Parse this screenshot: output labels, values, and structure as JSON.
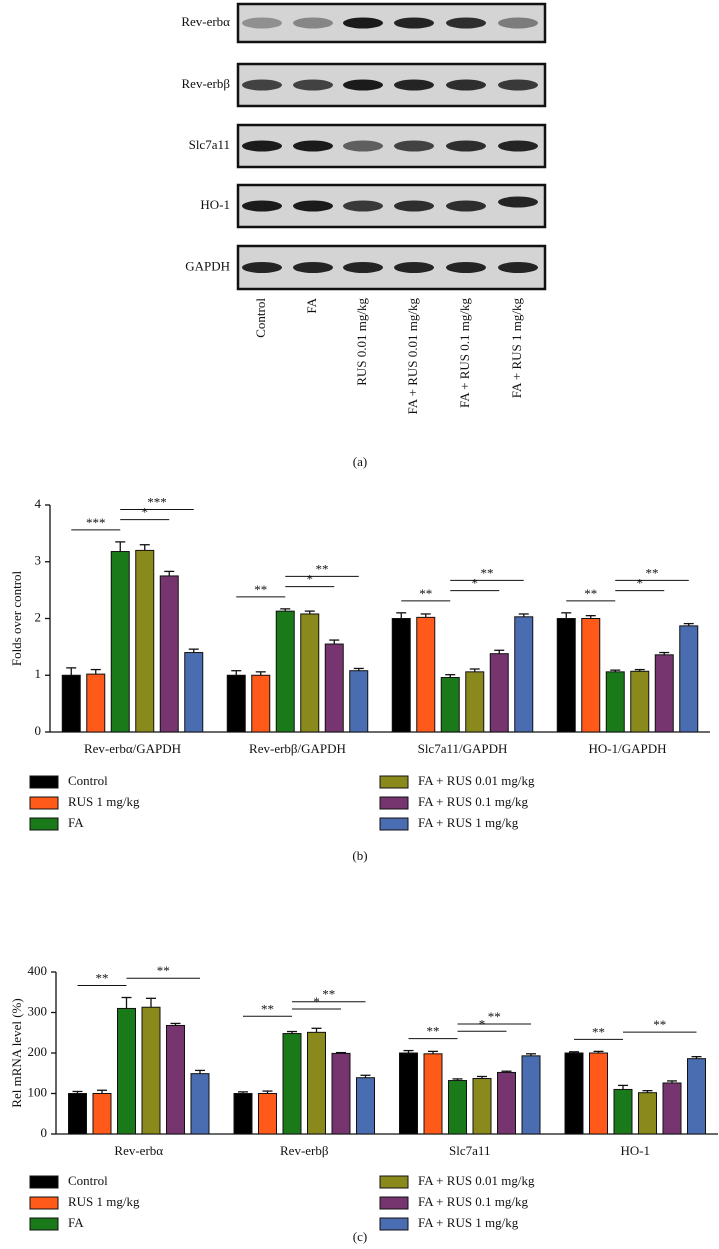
{
  "figure": {
    "panel_a": {
      "rows": [
        "Rev-erbα",
        "Rev-erbβ",
        "Slc7a11",
        "HO-1",
        "GAPDH"
      ],
      "columns": [
        "Control",
        "FA",
        "RUS 0.01 mg/kg",
        "FA + RUS 0.01 mg/kg",
        "FA + RUS 0.1 mg/kg",
        "FA + RUS 1 mg/kg"
      ],
      "caption": "(a)"
    }
  },
  "chart_data": [
    {
      "type": "bar",
      "caption": "(b)",
      "y_label": "Folds over control",
      "categories": [
        "Rev-erbα/GAPDH",
        "Rev-erbβ/GAPDH",
        "Slc7a11/GAPDH",
        "HO-1/GAPDH"
      ],
      "series": [
        {
          "name": "Control",
          "color": "#000000",
          "values": [
            1.0,
            1.0,
            2.0,
            2.0
          ],
          "errors": [
            0.13,
            0.08,
            0.1,
            0.1
          ]
        },
        {
          "name": "RUS 1 mg/kg",
          "color": "#ff5a1a",
          "values": [
            1.02,
            1.0,
            2.02,
            2.0
          ],
          "errors": [
            0.08,
            0.06,
            0.06,
            0.05
          ]
        },
        {
          "name": "FA",
          "color": "#1a7a1a",
          "values": [
            3.18,
            2.13,
            0.96,
            1.06
          ],
          "errors": [
            0.17,
            0.04,
            0.05,
            0.03
          ]
        },
        {
          "name": "FA + RUS 0.01 mg/kg",
          "color": "#8a8a1c",
          "values": [
            3.2,
            2.08,
            1.06,
            1.07
          ],
          "errors": [
            0.1,
            0.05,
            0.05,
            0.03
          ]
        },
        {
          "name": "FA + RUS 0.1 mg/kg",
          "color": "#76356f",
          "values": [
            2.75,
            1.55,
            1.38,
            1.36
          ],
          "errors": [
            0.08,
            0.07,
            0.06,
            0.04
          ]
        },
        {
          "name": "FA + RUS 1 mg/kg",
          "color": "#4a6cb0",
          "values": [
            1.4,
            1.08,
            2.03,
            1.87
          ],
          "errors": [
            0.06,
            0.04,
            0.05,
            0.04
          ]
        }
      ],
      "annotations": [
        {
          "text": "***",
          "category": 0,
          "from": 0,
          "to": 2
        },
        {
          "text": "*",
          "category": 0,
          "from": 2,
          "to": 4
        },
        {
          "text": "***",
          "category": 0,
          "from": 2,
          "to": 5
        },
        {
          "text": "**",
          "category": 1,
          "from": 0,
          "to": 2
        },
        {
          "text": "*",
          "category": 1,
          "from": 2,
          "to": 4
        },
        {
          "text": "**",
          "category": 1,
          "from": 2,
          "to": 5
        },
        {
          "text": "**",
          "category": 2,
          "from": 0,
          "to": 2
        },
        {
          "text": "*",
          "category": 2,
          "from": 2,
          "to": 4
        },
        {
          "text": "**",
          "category": 2,
          "from": 2,
          "to": 5
        },
        {
          "text": "**",
          "category": 3,
          "from": 0,
          "to": 2
        },
        {
          "text": "*",
          "category": 3,
          "from": 2,
          "to": 4
        },
        {
          "text": "**",
          "category": 3,
          "from": 2,
          "to": 5
        }
      ],
      "ylim": [
        0,
        4
      ],
      "yticks": [
        0,
        1,
        2,
        3,
        4
      ]
    },
    {
      "type": "bar",
      "caption": "(c)",
      "y_label": "Rel mRNA level (%)",
      "categories": [
        "Rev-erbα",
        "Rev-erbβ",
        "Slc7a11",
        "HO-1"
      ],
      "series": [
        {
          "name": "Control",
          "color": "#000000",
          "values": [
            100,
            100,
            200,
            200
          ],
          "errors": [
            5,
            4,
            6,
            3
          ]
        },
        {
          "name": "RUS 1 mg/kg",
          "color": "#ff5a1a",
          "values": [
            100,
            100,
            198,
            200
          ],
          "errors": [
            8,
            6,
            6,
            4
          ]
        },
        {
          "name": "FA",
          "color": "#1a7a1a",
          "values": [
            310,
            248,
            132,
            110
          ],
          "errors": [
            27,
            5,
            4,
            10
          ]
        },
        {
          "name": "FA + RUS 0.01 mg/kg",
          "color": "#8a8a1c",
          "values": [
            313,
            251,
            137,
            102
          ],
          "errors": [
            22,
            10,
            5,
            5
          ]
        },
        {
          "name": "FA + RUS 0.1 mg/kg",
          "color": "#76356f",
          "values": [
            268,
            199,
            152,
            126
          ],
          "errors": [
            5,
            2,
            3,
            5
          ]
        },
        {
          "name": "FA + RUS 1 mg/kg",
          "color": "#4a6cb0",
          "values": [
            149,
            139,
            193,
            186
          ],
          "errors": [
            8,
            6,
            5,
            5
          ]
        }
      ],
      "annotations": [
        {
          "text": "**",
          "category": 0,
          "from": 0,
          "to": 2
        },
        {
          "text": "**",
          "category": 0,
          "from": 2,
          "to": 5
        },
        {
          "text": "**",
          "category": 1,
          "from": 0,
          "to": 2
        },
        {
          "text": "*",
          "category": 1,
          "from": 2,
          "to": 4
        },
        {
          "text": "**",
          "category": 1,
          "from": 2,
          "to": 5
        },
        {
          "text": "**",
          "category": 2,
          "from": 0,
          "to": 2
        },
        {
          "text": "*",
          "category": 2,
          "from": 2,
          "to": 4
        },
        {
          "text": "**",
          "category": 2,
          "from": 2,
          "to": 5
        },
        {
          "text": "**",
          "category": 3,
          "from": 0,
          "to": 2
        },
        {
          "text": "**",
          "category": 3,
          "from": 2,
          "to": 5
        }
      ],
      "ylim": [
        0,
        400
      ],
      "yticks": [
        0,
        100,
        200,
        300,
        400
      ]
    }
  ]
}
